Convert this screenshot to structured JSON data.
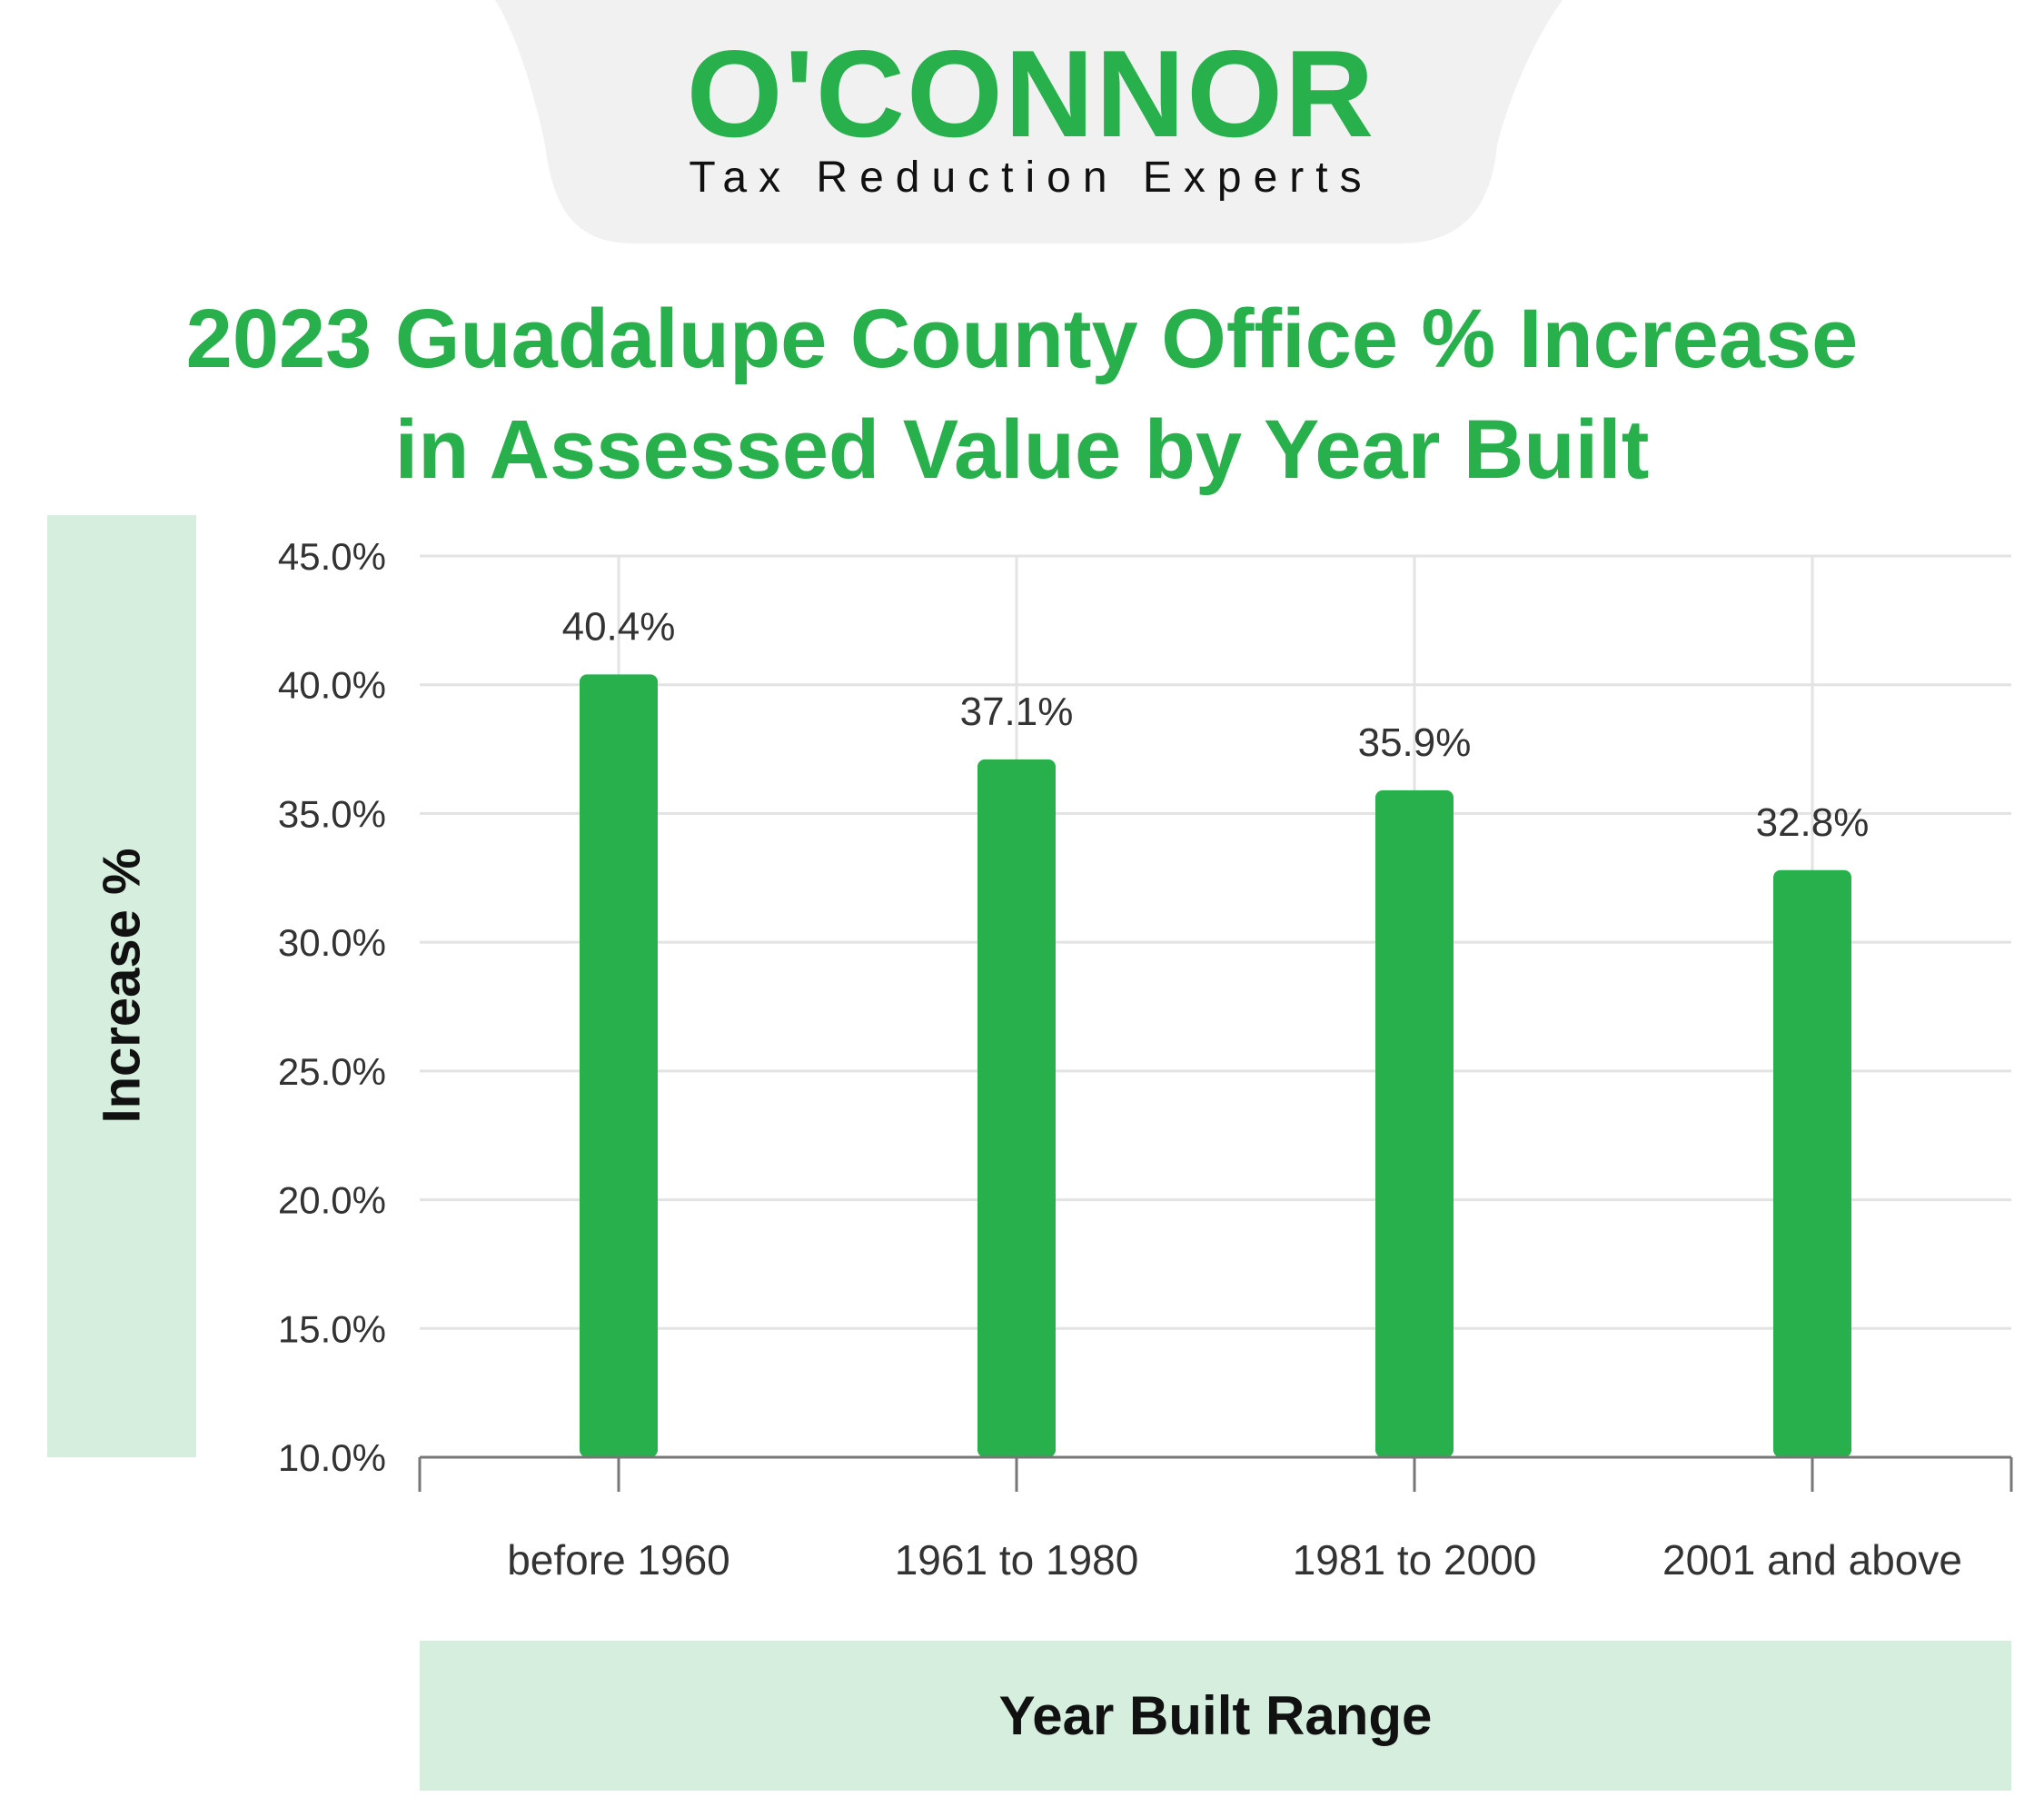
{
  "brand": {
    "name": "O'CONNOR",
    "tagline": "Tax Reduction Experts",
    "color": "#27b04b",
    "badge_color": "#f1f1f1"
  },
  "chart_data": {
    "type": "bar",
    "title_line1": "2023 Guadalupe County Office % Increase",
    "title_line2": "in Assessed Value by Year Built",
    "xlabel": "Year Built Range",
    "ylabel": "Increase %",
    "categories": [
      "before 1960",
      "1961 to 1980",
      "1981 to 2000",
      "2001 and above"
    ],
    "values": [
      40.4,
      37.1,
      35.9,
      32.8
    ],
    "value_labels": [
      "40.4%",
      "37.1%",
      "35.9%",
      "32.8%"
    ],
    "ylim": [
      10,
      45
    ],
    "yticks": [
      10,
      15,
      20,
      25,
      30,
      35,
      40,
      45
    ],
    "ytick_labels": [
      "10.0%",
      "15.0%",
      "20.0%",
      "25.0%",
      "30.0%",
      "35.0%",
      "40.0%",
      "45.0%"
    ],
    "grid": true,
    "bar_color": "#27b04b",
    "label_box_color": "#d5eedd"
  }
}
